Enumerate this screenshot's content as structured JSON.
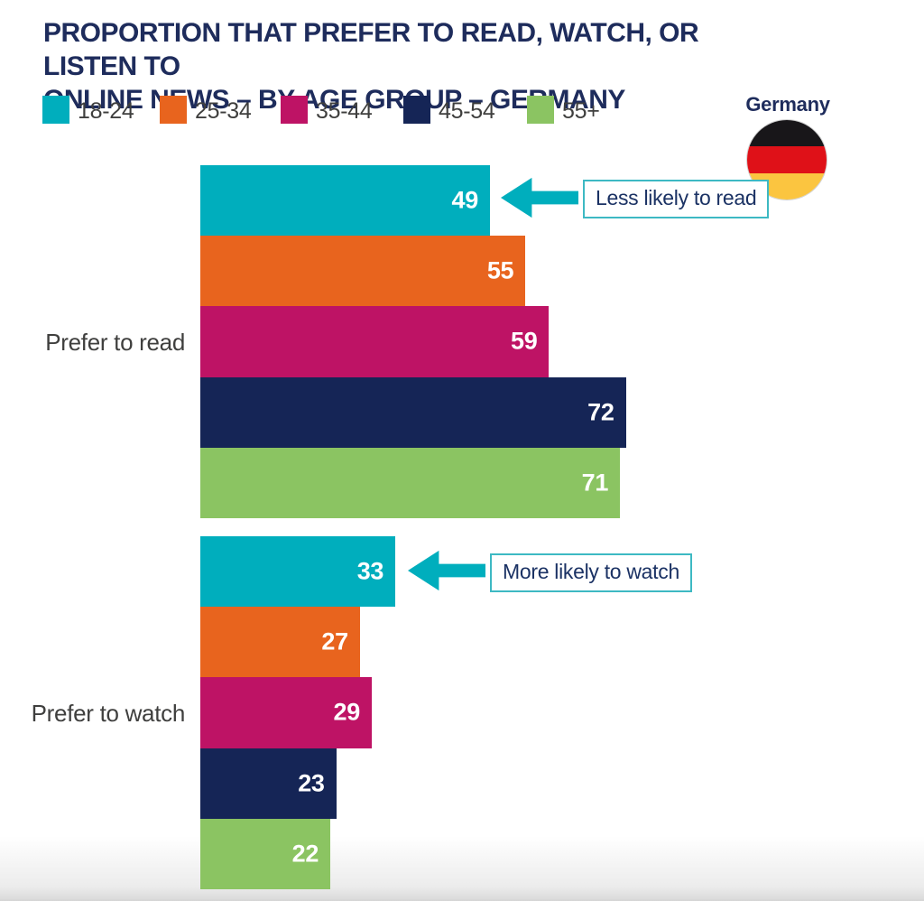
{
  "title": {
    "line1": "PROPORTION THAT PREFER TO READ, WATCH, OR LISTEN TO",
    "line2": "ONLINE NEWS – BY AGE GROUP – GERMANY",
    "color": "#1E2C5C"
  },
  "country": {
    "label": "Germany",
    "flag": {
      "stripe_top": "#181619",
      "stripe_middle": "#DF1118",
      "stripe_bottom": "#FBC540"
    }
  },
  "chart_data": {
    "type": "bar",
    "orientation": "horizontal",
    "title": "Proportion that prefer to read, watch, or listen to online news – by age group – Germany",
    "categories": [
      "Prefer to read",
      "Prefer to watch"
    ],
    "series": [
      {
        "name": "18-24",
        "color": "#00AEBD",
        "values": [
          49,
          33
        ]
      },
      {
        "name": "25-34",
        "color": "#E8641E",
        "values": [
          55,
          27
        ]
      },
      {
        "name": "35-44",
        "color": "#BE1365",
        "values": [
          59,
          29
        ]
      },
      {
        "name": "45-54",
        "color": "#152556",
        "values": [
          72,
          23
        ]
      },
      {
        "name": "55+",
        "color": "#8BC462",
        "values": [
          71,
          22
        ]
      }
    ],
    "xlim": [
      0,
      100
    ],
    "grid": false,
    "legend_position": "top",
    "value_labels": "inside-end-white-bold",
    "annotations": [
      {
        "text": "Less likely to read",
        "category": "Prefer to read",
        "series": "18-24",
        "value": 49
      },
      {
        "text": "More likely to watch",
        "category": "Prefer to watch",
        "series": "18-24",
        "value": 33
      }
    ],
    "accent_color": "#00AEBD",
    "annotation_text_color": "#1B3264",
    "label_text_color": "#3F3F3E"
  }
}
